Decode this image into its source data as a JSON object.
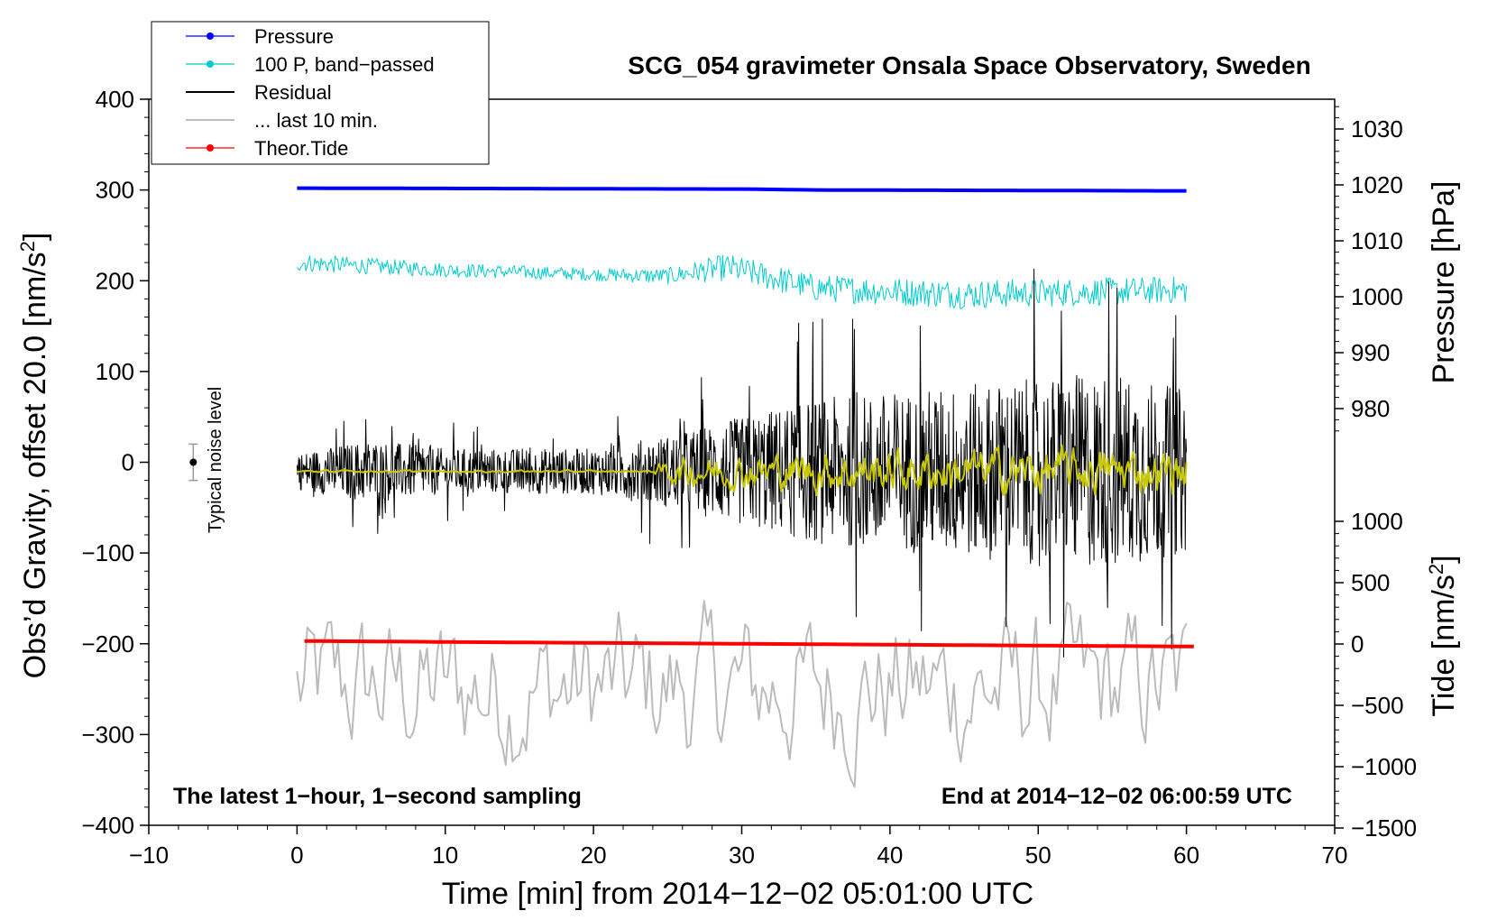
{
  "chart_data": {
    "type": "line",
    "title": "SCG_054 gravimeter Onsala Space Observatory, Sweden",
    "xlabel": "Time [min] from 2014−12−02 05:01:00 UTC",
    "ylabel_left_text": "Obs’d Gravity, offset 20.0 [nm/s",
    "ylabel_left_sup": "2",
    "ylabel_left_close": "]",
    "ylabel_right_pressure": "Pressure [hPa]",
    "ylabel_right_tide_text": "Tide [nm/s",
    "ylabel_right_tide_sup": "2",
    "ylabel_right_tide_close": "]",
    "xlim": [
      -10,
      70
    ],
    "ylim": [
      -400,
      400
    ],
    "pressure_axis_range": [
      975,
      1035
    ],
    "tide_axis_range": [
      -1500,
      1000
    ],
    "x_ticks": [
      "−10",
      "0",
      "10",
      "20",
      "30",
      "40",
      "50",
      "60",
      "70"
    ],
    "x_tick_values": [
      -10,
      0,
      10,
      20,
      30,
      40,
      50,
      60,
      70
    ],
    "y_ticks": [
      "−400",
      "−300",
      "−200",
      "−100",
      "0",
      "100",
      "200",
      "300",
      "400"
    ],
    "y_tick_values": [
      -400,
      -300,
      -200,
      -100,
      0,
      100,
      200,
      300,
      400
    ],
    "pressure_ticks": [
      "980",
      "990",
      "1000",
      "1010",
      "1020",
      "1030"
    ],
    "pressure_tick_values": [
      980,
      990,
      1000,
      1010,
      1020,
      1030
    ],
    "tide_ticks": [
      "−1500",
      "−1000",
      "−500",
      "0",
      "500",
      "1000"
    ],
    "tide_tick_values": [
      -1500,
      -1000,
      -500,
      0,
      500,
      1000
    ],
    "annotations": {
      "bottom_left": "The latest 1−hour, 1−second sampling",
      "bottom_right": "End at 2014−12−02 06:00:59 UTC",
      "noise_label": "Typical noise level"
    },
    "noise_bar": {
      "x": -7.0,
      "y": 0,
      "half_range": 20
    },
    "legend": [
      {
        "label": "Pressure",
        "color": "#0000ff",
        "marker": true
      },
      {
        "label": "100 P, band−passed",
        "color": "#00cccc",
        "marker": true
      },
      {
        "label": "Residual",
        "color": "#000000",
        "marker": false
      },
      {
        "label": "... last 10 min.",
        "color": "#bbbbbb",
        "marker": false
      },
      {
        "label": "Theor.Tide",
        "color": "#ff0000",
        "marker": true
      }
    ],
    "series": [
      {
        "name": "Pressure",
        "color": "#0000ff",
        "x": [
          0,
          30,
          35,
          60
        ],
        "values": [
          302,
          301,
          300,
          299
        ]
      },
      {
        "name": "100 P, band−passed",
        "color": "#00cccc",
        "x": [
          0,
          10,
          20,
          25,
          29,
          35,
          45,
          60
        ],
        "values": [
          220,
          212,
          207,
          205,
          215,
          192,
          185,
          190
        ],
        "noise_amp": [
          10,
          8,
          7,
          9,
          15,
          15,
          16,
          15
        ]
      },
      {
        "name": "Residual",
        "color": "#000000",
        "x": [
          0,
          5,
          10,
          20,
          25,
          35,
          45,
          55,
          60
        ],
        "values": [
          -10,
          -10,
          -10,
          -10,
          -10,
          -10,
          -10,
          -10,
          -10
        ],
        "noise_amp": [
          20,
          35,
          25,
          25,
          40,
          80,
          95,
          110,
          90
        ]
      },
      {
        "name": "Residual (smoothed)",
        "color": "#c8c800",
        "x": [
          0,
          24,
          25,
          35,
          45,
          60
        ],
        "values": [
          -10,
          -10,
          -10,
          -10,
          -10,
          -10
        ],
        "noise_amp": [
          1,
          1,
          12,
          18,
          20,
          20
        ]
      },
      {
        "name": "... last 10 min.",
        "color": "#bbbbbb",
        "x": [
          0,
          60
        ],
        "values": [
          -250,
          -250
        ],
        "noise_amp": [
          70,
          70
        ]
      },
      {
        "name": "Theor.Tide",
        "color": "#ff0000",
        "x": [
          0.5,
          30,
          60.5
        ],
        "values": [
          -197,
          -200,
          -203
        ]
      }
    ]
  }
}
